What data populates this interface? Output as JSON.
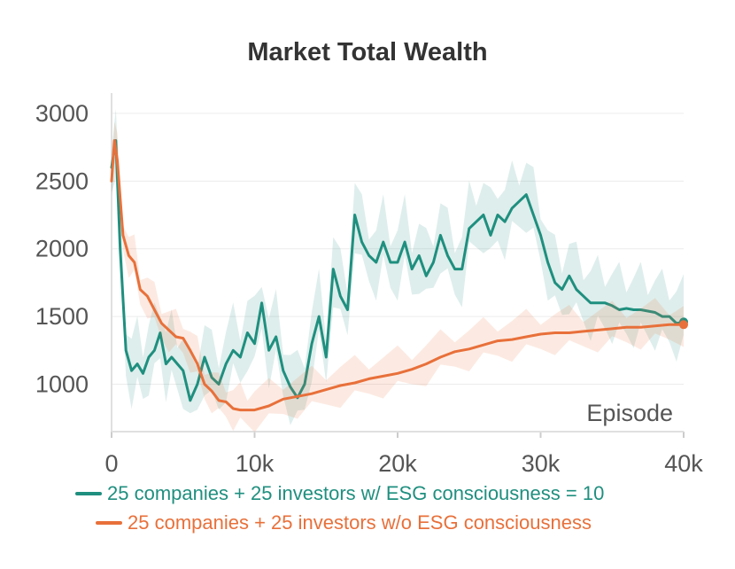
{
  "chart_data": {
    "type": "line",
    "title": "Market Total Wealth",
    "xlabel": "Episode",
    "ylabel": "",
    "xlim": [
      0,
      40000
    ],
    "ylim": [
      650,
      3150
    ],
    "x_ticks": [
      0,
      10000,
      20000,
      30000,
      40000
    ],
    "x_tick_labels": [
      "0",
      "10k",
      "20k",
      "30k",
      "40k"
    ],
    "y_ticks": [
      1000,
      1500,
      2000,
      2500,
      3000
    ],
    "y_tick_labels": [
      "1000",
      "1500",
      "2000",
      "2500",
      "3000"
    ],
    "grid": true,
    "legend_position": "bottom",
    "series": [
      {
        "name": "25 companies + 25 investors w/ ESG consciousness = 10",
        "color": "#1f8f7f",
        "x": [
          0,
          300,
          600,
          1000,
          1400,
          1800,
          2200,
          2600,
          3000,
          3400,
          3800,
          4200,
          4600,
          5000,
          5500,
          6000,
          6500,
          7000,
          7500,
          8000,
          8500,
          9000,
          9500,
          10000,
          10500,
          11000,
          11500,
          12000,
          12500,
          13000,
          13500,
          14000,
          14500,
          15000,
          15500,
          16000,
          16500,
          17000,
          17500,
          18000,
          18500,
          19000,
          19500,
          20000,
          20500,
          21000,
          21500,
          22000,
          22500,
          23000,
          23500,
          24000,
          24500,
          25000,
          25500,
          26000,
          26500,
          27000,
          27500,
          28000,
          28500,
          29000,
          29500,
          30000,
          30500,
          31000,
          31500,
          32000,
          32500,
          33000,
          33500,
          34000,
          34500,
          35000,
          35500,
          36000,
          36500,
          37000,
          37500,
          38000,
          38500,
          39000,
          39500,
          40000
        ],
        "values": [
          2600,
          2800,
          2000,
          1250,
          1100,
          1150,
          1080,
          1200,
          1250,
          1380,
          1150,
          1200,
          1150,
          1100,
          880,
          1000,
          1200,
          1050,
          1000,
          1150,
          1250,
          1200,
          1380,
          1300,
          1600,
          1250,
          1350,
          1100,
          980,
          900,
          1000,
          1300,
          1500,
          1200,
          1850,
          1650,
          1550,
          2250,
          2050,
          1950,
          1900,
          2050,
          1900,
          1900,
          2050,
          1850,
          1950,
          1800,
          1900,
          2100,
          1950,
          1850,
          1850,
          2150,
          2200,
          2250,
          2100,
          2250,
          2200,
          2300,
          2350,
          2400,
          2250,
          2100,
          1900,
          1750,
          1700,
          1800,
          1700,
          1650,
          1600,
          1600,
          1600,
          1580,
          1550,
          1560,
          1550,
          1550,
          1540,
          1530,
          1500,
          1500,
          1450,
          1460
        ]
      },
      {
        "name": "25 companies + 25 investors w/o ESG consciousness",
        "color": "#e8703a",
        "x": [
          0,
          200,
          400,
          800,
          1200,
          1600,
          2000,
          2500,
          3000,
          3500,
          4000,
          4500,
          5000,
          5500,
          6000,
          6500,
          7000,
          7500,
          8000,
          8500,
          9000,
          9500,
          10000,
          11000,
          12000,
          13000,
          14000,
          15000,
          16000,
          17000,
          18000,
          19000,
          20000,
          21000,
          22000,
          23000,
          24000,
          25000,
          26000,
          27000,
          28000,
          29000,
          30000,
          31000,
          32000,
          33000,
          34000,
          35000,
          36000,
          37000,
          38000,
          39000,
          40000
        ],
        "values": [
          2500,
          2800,
          2650,
          2100,
          1950,
          1900,
          1700,
          1650,
          1550,
          1450,
          1400,
          1350,
          1340,
          1250,
          1150,
          1000,
          950,
          880,
          870,
          820,
          810,
          810,
          810,
          840,
          890,
          910,
          930,
          960,
          990,
          1010,
          1040,
          1060,
          1080,
          1110,
          1150,
          1200,
          1240,
          1260,
          1290,
          1320,
          1330,
          1350,
          1370,
          1380,
          1380,
          1390,
          1400,
          1410,
          1420,
          1420,
          1430,
          1440,
          1440
        ]
      }
    ]
  }
}
